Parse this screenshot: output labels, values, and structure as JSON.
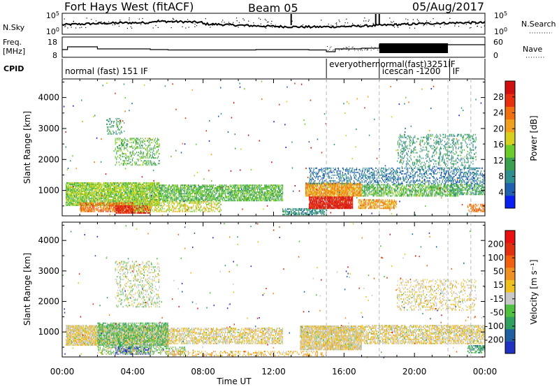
{
  "header": {
    "station": "Fort Hays West (fitACF)",
    "beam": "Beam 05",
    "date": "05/Aug/2017"
  },
  "strips": {
    "nsky_label": "N.Sky",
    "nsky_ticks": [
      "10^5",
      "10^0"
    ],
    "nsearch_label": "N.Search",
    "nsearch_ticks": [
      "10^5",
      "10^0"
    ],
    "freq_label_line1": "Freq.",
    "freq_label_line2": "[MHz]",
    "freq_ticks": [
      "18",
      "8"
    ],
    "nave_label": "Nave",
    "nave_ticks": [
      "60",
      "0"
    ],
    "cpid_label": "CPID",
    "cpid_segments": [
      {
        "label": "normal (fast) 151 IF",
        "start_hour": 0.0
      },
      {
        "label": "everyothernormal(fast)3251IF",
        "start_hour": 15.0
      },
      {
        "label": "icescan -1200",
        "start_hour": 18.0
      },
      {
        "label": "IF",
        "start_hour": 22.0
      }
    ]
  },
  "panels": {
    "power": {
      "ylabel": "Slant Range [km]",
      "colorbar_label": "Power [dB]",
      "colorbar_ticks": [
        "28",
        "24",
        "20",
        "16",
        "12",
        "8",
        "4"
      ],
      "colors": [
        "#0a20f0",
        "#2060b0",
        "#2f8f8f",
        "#3aa050",
        "#6ccc2a",
        "#d8d020",
        "#f0a020",
        "#f07010",
        "#e83010",
        "#d01010"
      ]
    },
    "velocity": {
      "ylabel": "Slant Range [km]",
      "colorbar_label": "Velocity [m s⁻¹]",
      "colorbar_ticks": [
        "200",
        "100",
        "50",
        "15",
        "-15",
        "-50",
        "-100",
        "-200"
      ],
      "colors": [
        "#2030c0",
        "#2060a0",
        "#30a060",
        "#50c040",
        "#c8c8c8",
        "#f0c020",
        "#f09020",
        "#f06010",
        "#e03010",
        "#e81010"
      ]
    }
  },
  "xaxis": {
    "label": "Time UT",
    "ticks": [
      "00:00",
      "04:00",
      "08:00",
      "12:00",
      "16:00",
      "20:00",
      "00:00"
    ]
  },
  "chart_data": [
    {
      "type": "heatmap",
      "title": "Fort Hays West (fitACF)",
      "xlabel": "Time UT",
      "ylabel": "Slant Range [km]",
      "zlabel": "Power [dB]",
      "xlim_hours": [
        0,
        24
      ],
      "ylim_km": [
        180,
        4600
      ],
      "zlim": [
        0,
        30
      ],
      "bands": [
        {
          "t0": 0.2,
          "t1": 5.5,
          "r0": 500,
          "r1": 1250,
          "z": 14,
          "density": 0.75
        },
        {
          "t0": 1.0,
          "t1": 4.0,
          "r0": 300,
          "r1": 600,
          "z": 22,
          "density": 0.6
        },
        {
          "t0": 3.0,
          "t1": 5.0,
          "r0": 250,
          "r1": 500,
          "z": 27,
          "density": 0.7
        },
        {
          "t0": 5.5,
          "t1": 12.5,
          "r0": 650,
          "r1": 1150,
          "z": 12,
          "density": 0.6
        },
        {
          "t0": 4.0,
          "t1": 9.0,
          "r0": 300,
          "r1": 650,
          "z": 16,
          "density": 0.4
        },
        {
          "t0": 12.5,
          "t1": 15.0,
          "r0": 200,
          "r1": 400,
          "z": 8,
          "density": 0.5
        },
        {
          "t0": 13.8,
          "t1": 17.0,
          "r0": 800,
          "r1": 1250,
          "z": 20,
          "density": 0.8
        },
        {
          "t0": 14.0,
          "t1": 16.5,
          "r0": 400,
          "r1": 800,
          "z": 27,
          "density": 0.9
        },
        {
          "t0": 16.8,
          "t1": 19.0,
          "r0": 400,
          "r1": 700,
          "z": 20,
          "density": 0.6
        },
        {
          "t0": 17.0,
          "t1": 22.5,
          "r0": 800,
          "r1": 1200,
          "z": 12,
          "density": 0.5
        },
        {
          "t0": 22.0,
          "t1": 24.0,
          "r0": 850,
          "r1": 1200,
          "z": 10,
          "density": 0.5
        },
        {
          "t0": 3.0,
          "t1": 5.5,
          "r0": 1800,
          "r1": 2700,
          "z": 12,
          "density": 0.25
        },
        {
          "t0": 2.5,
          "t1": 3.5,
          "r0": 2800,
          "r1": 3300,
          "z": 10,
          "density": 0.25
        },
        {
          "t0": 14.0,
          "t1": 24.0,
          "r0": 1200,
          "r1": 1700,
          "z": 6,
          "density": 0.3
        },
        {
          "t0": 19.0,
          "t1": 23.5,
          "r0": 1700,
          "r1": 2800,
          "z": 9,
          "density": 0.2
        },
        {
          "t0": 23.0,
          "t1": 24.0,
          "r0": 300,
          "r1": 550,
          "z": 22,
          "density": 0.5
        }
      ]
    },
    {
      "type": "heatmap",
      "title": "Fort Hays West (fitACF)",
      "xlabel": "Time UT",
      "ylabel": "Slant Range [km]",
      "zlabel": "Velocity [m s⁻¹]",
      "xlim_hours": [
        0,
        24
      ],
      "ylim_km": [
        180,
        4600
      ],
      "zlim": [
        -250,
        250
      ],
      "bands": [
        {
          "t0": 0.2,
          "t1": 6.0,
          "r0": 550,
          "r1": 1200,
          "z": 0,
          "density": 0.8
        },
        {
          "t0": 2.0,
          "t1": 6.0,
          "r0": 500,
          "r1": 1300,
          "z": -80,
          "density": 0.5
        },
        {
          "t0": 3.0,
          "t1": 5.0,
          "r0": 250,
          "r1": 500,
          "z": -220,
          "density": 0.6
        },
        {
          "t0": 2.0,
          "t1": 7.0,
          "r0": 250,
          "r1": 500,
          "z": -40,
          "density": 0.4
        },
        {
          "t0": 6.0,
          "t1": 12.5,
          "r0": 600,
          "r1": 1100,
          "z": 0,
          "density": 0.5
        },
        {
          "t0": 13.5,
          "t1": 17.0,
          "r0": 400,
          "r1": 1200,
          "z": 0,
          "density": 0.8
        },
        {
          "t0": 17.0,
          "t1": 24.0,
          "r0": 600,
          "r1": 1200,
          "z": 0,
          "density": 0.55
        },
        {
          "t0": 3.0,
          "t1": 5.5,
          "r0": 1800,
          "r1": 3300,
          "z": -30,
          "density": 0.2
        },
        {
          "t0": 19.0,
          "t1": 23.5,
          "r0": 1700,
          "r1": 2700,
          "z": 0,
          "density": 0.2
        },
        {
          "t0": 23.0,
          "t1": 24.0,
          "r0": 300,
          "r1": 550,
          "z": -120,
          "density": 0.5
        },
        {
          "t0": 6.0,
          "t1": 15.0,
          "r0": 200,
          "r1": 350,
          "z": 40,
          "density": 0.25
        }
      ]
    }
  ]
}
